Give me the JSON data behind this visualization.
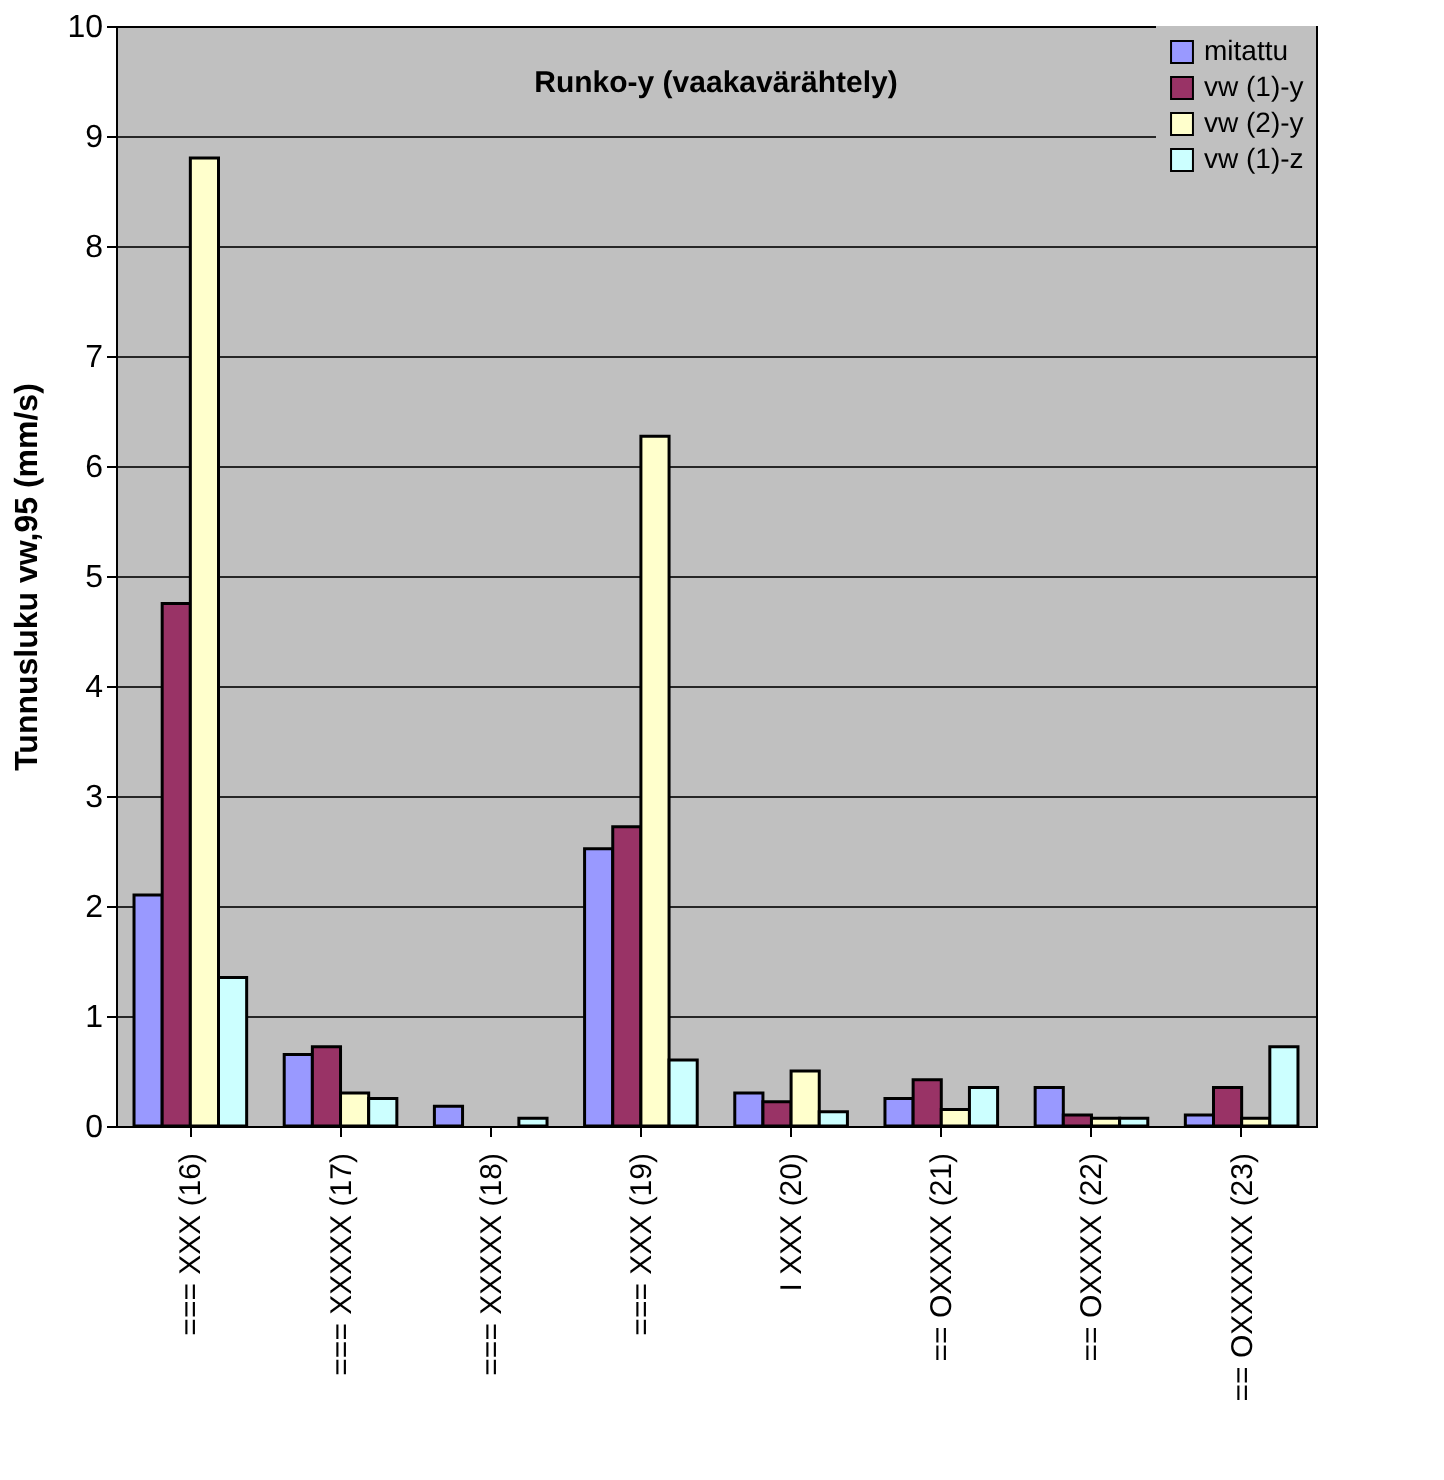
{
  "chart_data": {
    "type": "bar",
    "title": "Runko-y (vaakavärähtely)",
    "ylabel": "Tunnusluku vw,95 (mm/s)",
    "categories": [
      "=== XXX (16)",
      "=== XXXXX (17)",
      "=== XXXXX (18)",
      "=== XXX (19)",
      "I XXX (20)",
      "== OXXXX (21)",
      "== OXXXX (22)",
      "== OXXXXXX (23)"
    ],
    "series": [
      {
        "name": "mitattu",
        "color": "#9999ff",
        "values": [
          2.1,
          0.65,
          0.18,
          2.52,
          0.3,
          0.25,
          0.35,
          0.1
        ]
      },
      {
        "name": "vw (1)-y",
        "color": "#993366",
        "values": [
          4.75,
          0.72,
          null,
          2.72,
          0.22,
          0.42,
          0.1,
          0.35
        ]
      },
      {
        "name": "vw (2)-y",
        "color": "#ffffcc",
        "values": [
          8.8,
          0.3,
          null,
          6.27,
          0.5,
          0.15,
          0.07,
          0.07
        ]
      },
      {
        "name": "vw (1)-z",
        "color": "#ccffff",
        "values": [
          1.35,
          0.25,
          0.07,
          0.6,
          0.13,
          0.35,
          0.07,
          0.72
        ]
      }
    ],
    "ylim": [
      0,
      10
    ],
    "yticks": [
      0,
      1,
      2,
      3,
      4,
      5,
      6,
      7,
      8,
      9,
      10
    ],
    "grid": "y",
    "legend": "top right"
  }
}
